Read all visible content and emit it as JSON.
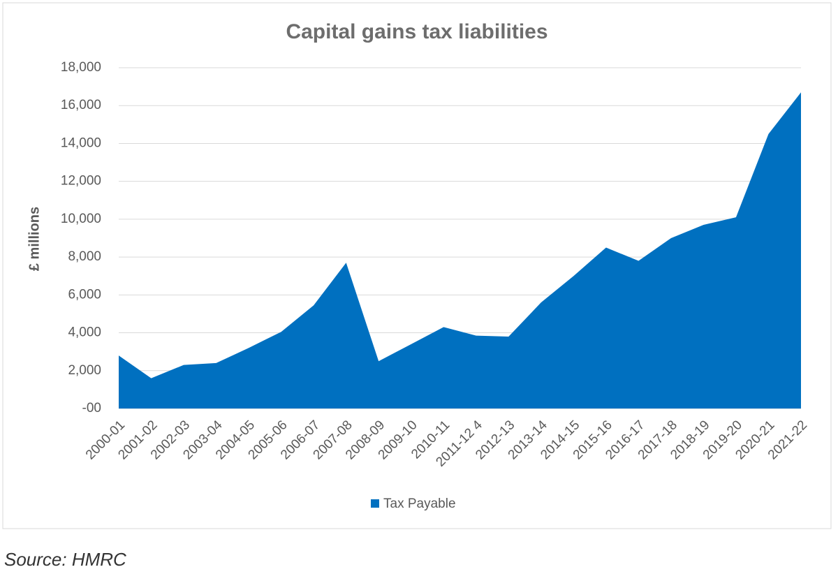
{
  "chart_data": {
    "type": "area",
    "title": "Capital gains tax liabilities",
    "y_label": "£ millions",
    "categories": [
      "2000-01",
      "2001-02",
      "2002-03",
      "2003-04",
      "2004-05",
      "2005-06",
      "2006-07",
      "2007-08",
      "2008-09",
      "2009-10",
      "2010-11",
      "2011-12 4",
      "2012-13",
      "2013-14",
      "2014-15",
      "2015-16",
      "2016-17",
      "2017-18",
      "2018-19",
      "2019-20",
      "2020-21",
      "2021-22"
    ],
    "series": [
      {
        "name": "Tax Payable",
        "color": "#0070c0",
        "values": [
          2800,
          1600,
          2300,
          2400,
          3200,
          4050,
          5450,
          7700,
          2500,
          3400,
          4300,
          3850,
          3800,
          5600,
          7000,
          8500,
          7800,
          9000,
          9700,
          10100,
          14500,
          16700
        ]
      }
    ],
    "ylim": [
      0,
      18000
    ],
    "yticks": [
      {
        "value": 0,
        "label": "-00"
      },
      {
        "value": 2000,
        "label": "2,000"
      },
      {
        "value": 4000,
        "label": "4,000"
      },
      {
        "value": 6000,
        "label": "6,000"
      },
      {
        "value": 8000,
        "label": "8,000"
      },
      {
        "value": 10000,
        "label": "10,000"
      },
      {
        "value": 12000,
        "label": "12,000"
      },
      {
        "value": 14000,
        "label": "14,000"
      },
      {
        "value": 16000,
        "label": "16,000"
      },
      {
        "value": 18000,
        "label": "18,000"
      }
    ],
    "grid": true,
    "legend": "bottom"
  },
  "source": "Source: HMRC"
}
